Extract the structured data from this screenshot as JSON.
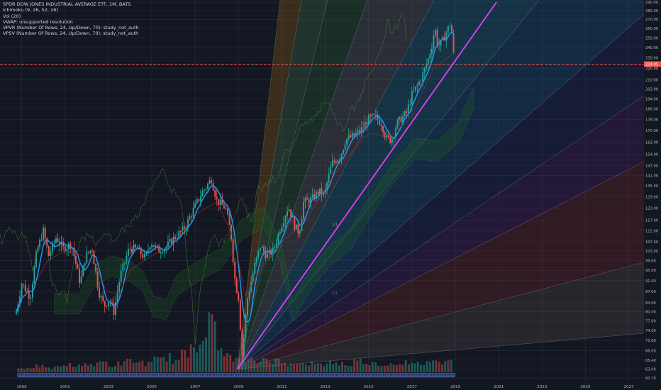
{
  "legend": {
    "symbol": "SPDR DOW JONES INDUSTRIAL AVERAGE ETF, 1M, BATS",
    "ichimoku": "Ichimoku (9, 26, 52, 26)",
    "vol": "Vol (20)",
    "vwap": "VWAP: unsupported resolution",
    "vpvr": "VPVR (Number Of Rows, 24, Up/Down, 70): study_not_auth",
    "vpsv": "VPSV (Number Of Rows, 24, Up/Down, 70): study_not_auth"
  },
  "fan_labels": [
    "1/1",
    "1/1"
  ],
  "event_marker": "D",
  "current_price_label": "224.05",
  "colors": {
    "background": "#131722",
    "up": "#26a69a",
    "down": "#ef5350",
    "tenkan": "#2196f3",
    "trendline": "#e040fb",
    "price_line": "#ef5350",
    "grid": "#2a2e39",
    "axis_text": "#b2b5be"
  },
  "chart_data": {
    "type": "candlestick",
    "title": "SPDR DOW JONES INDUSTRIAL AVERAGE ETF, 1M, BATS",
    "x_axis": {
      "tick_labels": [
        "1999",
        "2001",
        "2003",
        "2005",
        "2007",
        "2009",
        "2011",
        "2013",
        "2015",
        "2017",
        "2019",
        "2021",
        "2023",
        "2025",
        "2027"
      ],
      "range": [
        1998.0,
        2027.7
      ]
    },
    "y_axis": {
      "scale": "log",
      "range": [
        60.0,
        290.0
      ],
      "tick_labels": [
        "290.00",
        "280.00",
        "270.00",
        "260.00",
        "250.00",
        "240.00",
        "230.00",
        "220.00",
        "210.00",
        "202.00",
        "194.00",
        "186.00",
        "178.00",
        "170.00",
        "162.00",
        "154.00",
        "147.00",
        "141.00",
        "135.00",
        "129.00",
        "123.00",
        "117.00",
        "112.00",
        "107.00",
        "103.00",
        "99.00",
        "95.00",
        "91.00",
        "87.00",
        "83.00",
        "80.00",
        "77.00",
        "74.00",
        "71.00",
        "68.00",
        "65.40",
        "63.00",
        "60.70"
      ]
    },
    "current_price": 224.05,
    "price_path": [
      [
        1998.75,
        80
      ],
      [
        1999.0,
        90
      ],
      [
        1999.4,
        85
      ],
      [
        1999.7,
        103
      ],
      [
        2000.0,
        112
      ],
      [
        2000.25,
        101
      ],
      [
        2000.6,
        109
      ],
      [
        2000.9,
        104
      ],
      [
        2001.3,
        106
      ],
      [
        2001.7,
        90
      ],
      [
        2001.95,
        101
      ],
      [
        2002.25,
        104
      ],
      [
        2002.55,
        87
      ],
      [
        2002.8,
        82
      ],
      [
        2003.05,
        84
      ],
      [
        2003.25,
        80
      ],
      [
        2003.55,
        93
      ],
      [
        2003.95,
        104
      ],
      [
        2004.3,
        104
      ],
      [
        2004.7,
        100
      ],
      [
        2004.95,
        107
      ],
      [
        2005.3,
        103
      ],
      [
        2005.7,
        105
      ],
      [
        2005.95,
        108
      ],
      [
        2006.5,
        113
      ],
      [
        2006.95,
        123
      ],
      [
        2007.3,
        131
      ],
      [
        2007.75,
        139
      ],
      [
        2008.0,
        127
      ],
      [
        2008.4,
        123
      ],
      [
        2008.65,
        111
      ],
      [
        2008.85,
        90
      ],
      [
        2009.0,
        85
      ],
      [
        2009.17,
        66.2
      ],
      [
        2009.4,
        84
      ],
      [
        2009.75,
        97
      ],
      [
        2010.0,
        105
      ],
      [
        2010.3,
        101
      ],
      [
        2010.6,
        103
      ],
      [
        2010.95,
        114
      ],
      [
        2011.3,
        124
      ],
      [
        2011.6,
        114
      ],
      [
        2011.8,
        111
      ],
      [
        2012.0,
        126
      ],
      [
        2012.4,
        128
      ],
      [
        2012.7,
        132
      ],
      [
        2012.95,
        130
      ],
      [
        2013.3,
        148
      ],
      [
        2013.7,
        153
      ],
      [
        2013.95,
        164
      ],
      [
        2014.3,
        166
      ],
      [
        2014.7,
        171
      ],
      [
        2014.95,
        178
      ],
      [
        2015.3,
        180
      ],
      [
        2015.6,
        175
      ],
      [
        2015.8,
        165
      ],
      [
        2016.05,
        163
      ],
      [
        2016.3,
        175
      ],
      [
        2016.75,
        183
      ],
      [
        2017.0,
        197
      ],
      [
        2017.4,
        210
      ],
      [
        2017.7,
        225
      ],
      [
        2017.95,
        245
      ],
      [
        2018.05,
        262
      ],
      [
        2018.2,
        241
      ],
      [
        2018.4,
        246
      ],
      [
        2018.75,
        265
      ],
      [
        2018.85,
        253
      ],
      [
        2018.95,
        224.05
      ]
    ],
    "kijun_path": [
      [
        1999.5,
        88
      ],
      [
        2000.2,
        99
      ],
      [
        2001.0,
        103
      ],
      [
        2001.8,
        101
      ],
      [
        2002.4,
        97
      ],
      [
        2002.9,
        87
      ],
      [
        2003.5,
        86
      ],
      [
        2004.0,
        95
      ],
      [
        2005.0,
        101
      ],
      [
        2006.0,
        106
      ],
      [
        2007.0,
        120
      ],
      [
        2008.0,
        126
      ],
      [
        2008.8,
        108
      ],
      [
        2009.3,
        85
      ],
      [
        2010.0,
        95
      ],
      [
        2011.0,
        107
      ],
      [
        2012.0,
        115
      ],
      [
        2013.0,
        133
      ],
      [
        2014.0,
        152
      ],
      [
        2015.0,
        168
      ],
      [
        2016.0,
        166
      ],
      [
        2017.0,
        180
      ],
      [
        2018.0,
        220
      ],
      [
        2018.95,
        235
      ]
    ],
    "volume": [
      3,
      4,
      5,
      3,
      4,
      6,
      5,
      7,
      6,
      8,
      5,
      7,
      9,
      8,
      7,
      10,
      12,
      9,
      14,
      22,
      30,
      38,
      18,
      12,
      10,
      9,
      8,
      11,
      9,
      7,
      8,
      6,
      7,
      6,
      8,
      7,
      6,
      9,
      8,
      7,
      6,
      7,
      8,
      6,
      7,
      9,
      8,
      12
    ],
    "trendline": {
      "from": [
        2008.95,
        63.0
      ],
      "to": [
        2020.9,
        290.0
      ]
    },
    "fan_origin": [
      2008.95,
      63.0
    ]
  }
}
